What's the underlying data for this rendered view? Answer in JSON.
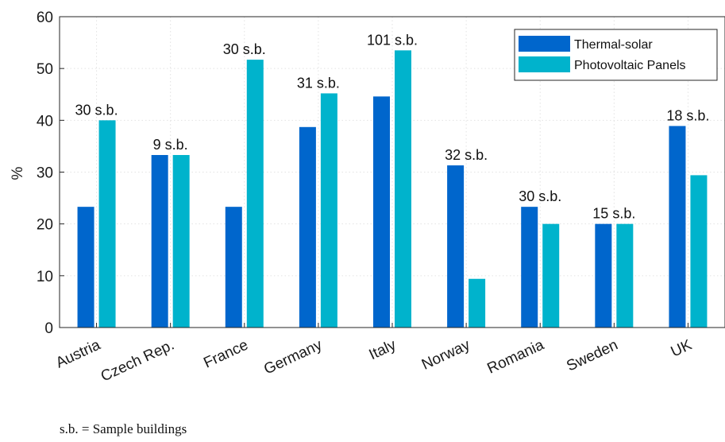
{
  "chart_data": {
    "type": "bar",
    "ylabel": "%",
    "xlabel": "",
    "ylim": [
      0,
      60
    ],
    "yticks": [
      0,
      10,
      20,
      30,
      40,
      50,
      60
    ],
    "grid": true,
    "legend_position": "top-right",
    "categories": [
      "Austria",
      "Czech Rep.",
      "France",
      "Germany",
      "Italy",
      "Norway",
      "Romania",
      "Sweden",
      "UK"
    ],
    "series": [
      {
        "name": "Thermal-solar",
        "color": "#0066cc",
        "values": [
          23.3,
          33.3,
          23.3,
          38.7,
          44.6,
          31.3,
          23.3,
          20.0,
          38.9
        ]
      },
      {
        "name": "Photovoltaic Panels",
        "color": "#00b3cc",
        "values": [
          40.0,
          33.3,
          51.7,
          45.2,
          53.5,
          9.4,
          20.0,
          20.0,
          29.4
        ]
      }
    ],
    "annotations": [
      "30 s.b.",
      "9 s.b.",
      "30 s.b.",
      "31 s.b.",
      "101 s.b.",
      "32 s.b.",
      "30 s.b.",
      "15 s.b.",
      "18 s.b."
    ]
  },
  "footnote": "s.b. = Sample buildings"
}
